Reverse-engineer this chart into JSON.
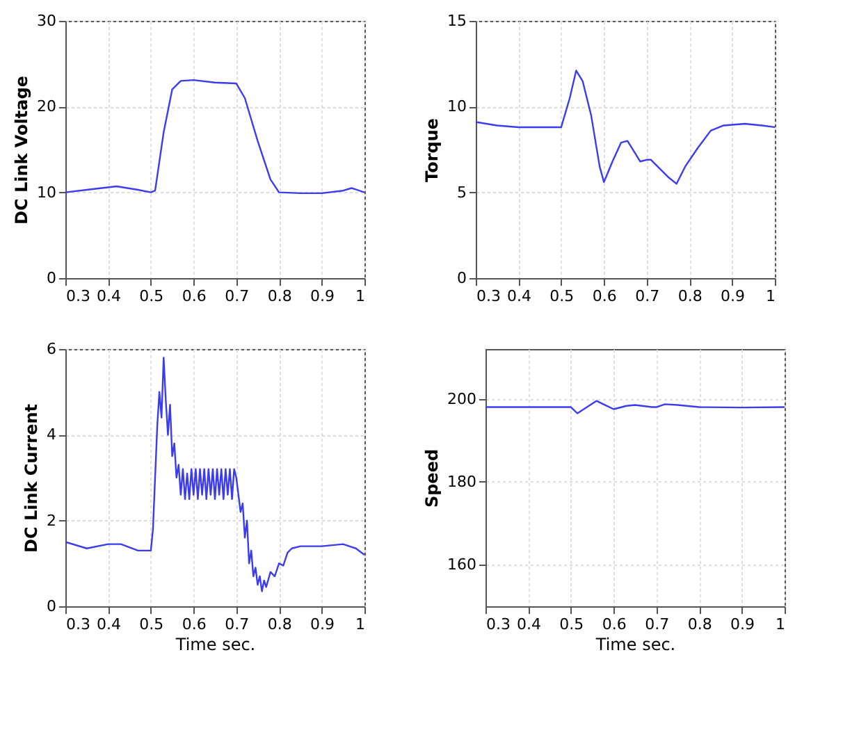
{
  "chart_data": [
    {
      "type": "line",
      "ylabel": "DC Link Voltage",
      "xlim": [
        0.3,
        1
      ],
      "xticks": [
        0.3,
        0.4,
        0.5,
        0.6,
        0.7,
        0.8,
        0.9,
        1
      ],
      "ylim": [
        0,
        30
      ],
      "yticks": [
        0,
        10,
        20,
        30
      ],
      "grid": true,
      "series": [
        {
          "color": "#3b3bf0",
          "x": [
            0.3,
            0.35,
            0.42,
            0.47,
            0.5,
            0.51,
            0.53,
            0.55,
            0.57,
            0.6,
            0.65,
            0.7,
            0.72,
            0.75,
            0.78,
            0.8,
            0.85,
            0.9,
            0.95,
            0.97,
            1
          ],
          "values": [
            10,
            10.3,
            10.7,
            10.3,
            10,
            10.2,
            17,
            22,
            23,
            23.1,
            22.8,
            22.7,
            21,
            16,
            11.5,
            10,
            9.9,
            9.9,
            10.2,
            10.5,
            10
          ]
        }
      ]
    },
    {
      "type": "line",
      "ylabel": "Torque",
      "xlim": [
        0.3,
        1
      ],
      "xticks": [
        0.3,
        0.4,
        0.5,
        0.6,
        0.7,
        0.8,
        0.9,
        1
      ],
      "ylim": [
        0,
        15
      ],
      "yticks": [
        0,
        5,
        10,
        15
      ],
      "grid": true,
      "series": [
        {
          "color": "#3b3bf0",
          "x": [
            0.3,
            0.35,
            0.4,
            0.5,
            0.52,
            0.535,
            0.55,
            0.57,
            0.59,
            0.6,
            0.62,
            0.64,
            0.655,
            0.67,
            0.685,
            0.7,
            0.71,
            0.73,
            0.75,
            0.77,
            0.79,
            0.82,
            0.85,
            0.88,
            0.93,
            0.97,
            1
          ],
          "values": [
            9.1,
            8.9,
            8.8,
            8.8,
            10.5,
            12.1,
            11.5,
            9.5,
            6.5,
            5.6,
            6.8,
            7.9,
            8.0,
            7.4,
            6.8,
            6.9,
            6.9,
            6.4,
            5.9,
            5.5,
            6.5,
            7.6,
            8.6,
            8.9,
            9.0,
            8.9,
            8.8
          ]
        }
      ]
    },
    {
      "type": "line",
      "ylabel": "DC Link Current",
      "xlabel": "Time sec.",
      "xlim": [
        0.3,
        1
      ],
      "xticks": [
        0.3,
        0.4,
        0.5,
        0.6,
        0.7,
        0.8,
        0.9,
        1
      ],
      "ylim": [
        0,
        6
      ],
      "yticks": [
        0,
        2,
        4,
        6
      ],
      "grid": true,
      "series": [
        {
          "color": "#3b3bf0",
          "x": [
            0.3,
            0.35,
            0.4,
            0.43,
            0.47,
            0.5,
            0.505,
            0.515,
            0.52,
            0.525,
            0.53,
            0.535,
            0.54,
            0.545,
            0.55,
            0.555,
            0.56,
            0.565,
            0.57,
            0.575,
            0.58,
            0.585,
            0.59,
            0.595,
            0.6,
            0.605,
            0.61,
            0.615,
            0.62,
            0.625,
            0.63,
            0.635,
            0.64,
            0.645,
            0.65,
            0.655,
            0.66,
            0.665,
            0.67,
            0.675,
            0.68,
            0.685,
            0.69,
            0.695,
            0.7,
            0.705,
            0.71,
            0.715,
            0.72,
            0.725,
            0.73,
            0.735,
            0.74,
            0.745,
            0.75,
            0.755,
            0.76,
            0.765,
            0.77,
            0.78,
            0.79,
            0.8,
            0.81,
            0.82,
            0.83,
            0.85,
            0.9,
            0.95,
            0.98,
            1
          ],
          "values": [
            1.5,
            1.35,
            1.45,
            1.45,
            1.3,
            1.3,
            1.8,
            4.2,
            5.0,
            4.4,
            5.8,
            4.8,
            4.0,
            4.7,
            3.5,
            3.8,
            3.0,
            3.3,
            2.6,
            3.2,
            2.5,
            3.1,
            2.5,
            3.2,
            2.6,
            3.2,
            2.5,
            3.2,
            2.6,
            3.2,
            2.5,
            3.2,
            2.6,
            3.2,
            2.5,
            3.2,
            2.6,
            3.2,
            2.5,
            3.2,
            2.6,
            3.2,
            2.5,
            3.2,
            3.0,
            2.6,
            2.2,
            2.4,
            1.6,
            2.0,
            1.0,
            1.3,
            0.7,
            0.9,
            0.5,
            0.7,
            0.35,
            0.6,
            0.45,
            0.8,
            0.7,
            1.0,
            0.95,
            1.25,
            1.35,
            1.4,
            1.4,
            1.45,
            1.35,
            1.2
          ]
        }
      ]
    },
    {
      "type": "line",
      "ylabel": "Speed",
      "xlabel": "Time sec.",
      "xlim": [
        0.3,
        1
      ],
      "xticks": [
        0.3,
        0.4,
        0.5,
        0.6,
        0.7,
        0.8,
        0.9,
        1
      ],
      "ylim": [
        150,
        212
      ],
      "yticks": [
        160,
        180,
        200
      ],
      "grid": true,
      "series": [
        {
          "color": "#3b3bf0",
          "x": [
            0.3,
            0.5,
            0.515,
            0.53,
            0.56,
            0.58,
            0.6,
            0.63,
            0.65,
            0.69,
            0.7,
            0.72,
            0.75,
            0.8,
            0.9,
            1
          ],
          "values": [
            198,
            198,
            196.5,
            197.5,
            199.5,
            198.5,
            197.5,
            198.3,
            198.5,
            198,
            198,
            198.7,
            198.5,
            198,
            197.9,
            198
          ]
        }
      ]
    }
  ]
}
